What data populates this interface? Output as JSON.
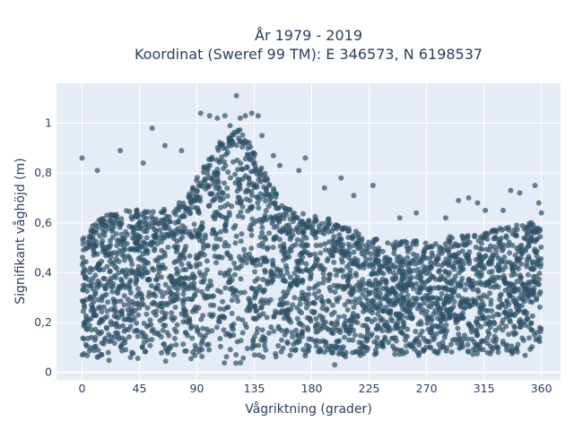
{
  "chart_data": {
    "type": "scatter",
    "title_line1": "År 1979 - 2019",
    "title_line2": "Koordinat (Sweref 99 TM): E 346573, N 6198537",
    "xlabel": "Vågriktning (grader)",
    "ylabel": "Signifikant våghöjd (m)",
    "xlim": [
      -20,
      375
    ],
    "ylim": [
      -0.03,
      1.16
    ],
    "x_ticks": [
      0,
      45,
      90,
      135,
      180,
      225,
      270,
      315,
      360
    ],
    "x_tick_labels": [
      "0",
      "45",
      "90",
      "135",
      "180",
      "225",
      "270",
      "315",
      "360"
    ],
    "y_ticks": [
      0,
      0.2,
      0.4,
      0.6,
      0.8,
      1
    ],
    "y_tick_labels": [
      "0",
      "0,2",
      "0,4",
      "0,6",
      "0,8",
      "1"
    ],
    "grid": true,
    "marker_color": "#2e5168",
    "plot_background": "#e5ecf6",
    "density_envelope": {
      "direction_deg": [
        0,
        10,
        20,
        30,
        40,
        50,
        60,
        70,
        80,
        90,
        100,
        110,
        120,
        125,
        130,
        140,
        150,
        160,
        170,
        180,
        190,
        200,
        210,
        220,
        230,
        240,
        250,
        260,
        270,
        280,
        290,
        300,
        310,
        320,
        330,
        340,
        350,
        360
      ],
      "lower_m": [
        0.07,
        0.06,
        0.05,
        0.05,
        0.05,
        0.05,
        0.05,
        0.05,
        0.05,
        0.05,
        0.04,
        0.03,
        0.03,
        0.02,
        0.03,
        0.04,
        0.05,
        0.05,
        0.06,
        0.06,
        0.06,
        0.06,
        0.07,
        0.07,
        0.07,
        0.07,
        0.07,
        0.07,
        0.07,
        0.07,
        0.07,
        0.07,
        0.07,
        0.07,
        0.07,
        0.07,
        0.07,
        0.07
      ],
      "upper_m": [
        0.45,
        0.52,
        0.56,
        0.57,
        0.58,
        0.57,
        0.57,
        0.58,
        0.62,
        0.7,
        0.78,
        0.86,
        0.89,
        0.9,
        0.86,
        0.75,
        0.66,
        0.58,
        0.56,
        0.55,
        0.55,
        0.52,
        0.5,
        0.47,
        0.46,
        0.44,
        0.45,
        0.45,
        0.44,
        0.44,
        0.47,
        0.47,
        0.47,
        0.5,
        0.5,
        0.51,
        0.52,
        0.52
      ]
    },
    "outlier_points": [
      {
        "x": 0,
        "y": 0.86
      },
      {
        "x": 12,
        "y": 0.81
      },
      {
        "x": 30,
        "y": 0.89
      },
      {
        "x": 55,
        "y": 0.98
      },
      {
        "x": 48,
        "y": 0.84
      },
      {
        "x": 65,
        "y": 0.91
      },
      {
        "x": 78,
        "y": 0.89
      },
      {
        "x": 93,
        "y": 1.04
      },
      {
        "x": 100,
        "y": 1.03
      },
      {
        "x": 106,
        "y": 1.02
      },
      {
        "x": 112,
        "y": 1.03
      },
      {
        "x": 116,
        "y": 0.99
      },
      {
        "x": 121,
        "y": 1.11
      },
      {
        "x": 124,
        "y": 1.02
      },
      {
        "x": 128,
        "y": 1.03
      },
      {
        "x": 133,
        "y": 1.04
      },
      {
        "x": 138,
        "y": 1.03
      },
      {
        "x": 141,
        "y": 0.95
      },
      {
        "x": 150,
        "y": 0.87
      },
      {
        "x": 155,
        "y": 0.83
      },
      {
        "x": 170,
        "y": 0.81
      },
      {
        "x": 175,
        "y": 0.86
      },
      {
        "x": 190,
        "y": 0.74
      },
      {
        "x": 203,
        "y": 0.78
      },
      {
        "x": 213,
        "y": 0.71
      },
      {
        "x": 228,
        "y": 0.75
      },
      {
        "x": 198,
        "y": 0.03
      },
      {
        "x": 249,
        "y": 0.62
      },
      {
        "x": 262,
        "y": 0.64
      },
      {
        "x": 285,
        "y": 0.62
      },
      {
        "x": 295,
        "y": 0.69
      },
      {
        "x": 303,
        "y": 0.7
      },
      {
        "x": 310,
        "y": 0.68
      },
      {
        "x": 316,
        "y": 0.65
      },
      {
        "x": 330,
        "y": 0.65
      },
      {
        "x": 336,
        "y": 0.73
      },
      {
        "x": 343,
        "y": 0.72
      },
      {
        "x": 355,
        "y": 0.75
      },
      {
        "x": 358,
        "y": 0.68
      },
      {
        "x": 360,
        "y": 0.64
      }
    ]
  }
}
